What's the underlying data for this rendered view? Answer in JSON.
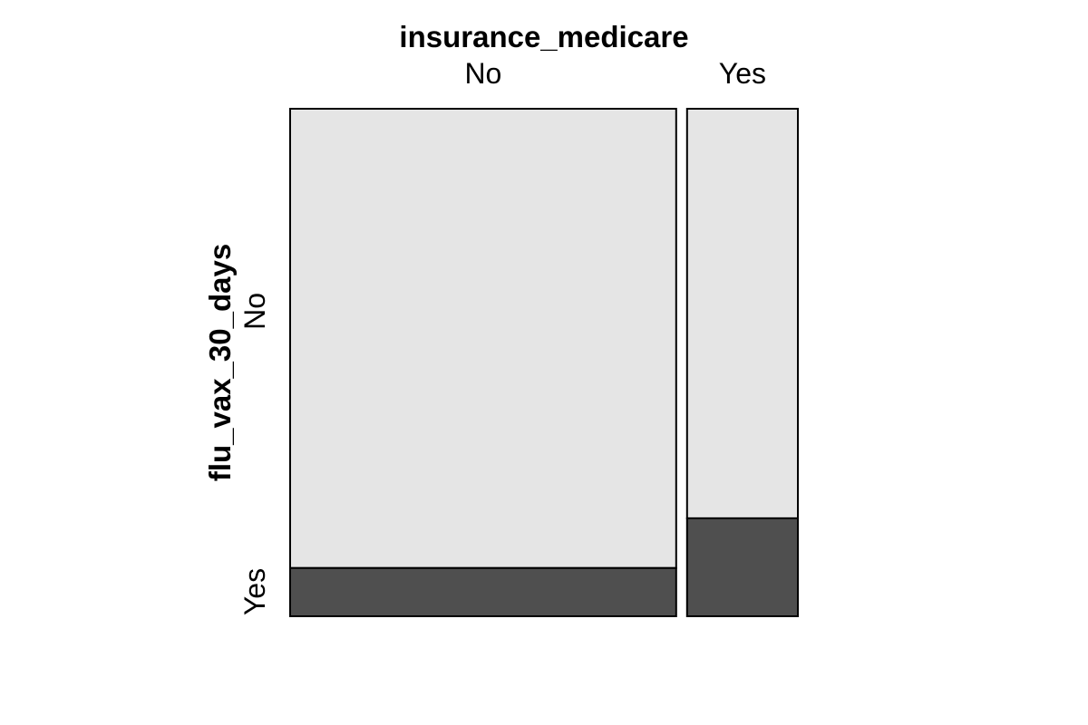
{
  "chart_data": {
    "type": "mosaic",
    "x_variable": "insurance_medicare",
    "y_variable": "flu_vax_30_days",
    "x_levels": [
      "No",
      "Yes"
    ],
    "y_levels": [
      "No",
      "Yes"
    ],
    "x_proportions": [
      0.777,
      0.223
    ],
    "conditional_yes_share": [
      0.095,
      0.193
    ],
    "colors": {
      "No": "#e5e5e5",
      "Yes": "#4f4f4f",
      "border": "#000000"
    }
  }
}
